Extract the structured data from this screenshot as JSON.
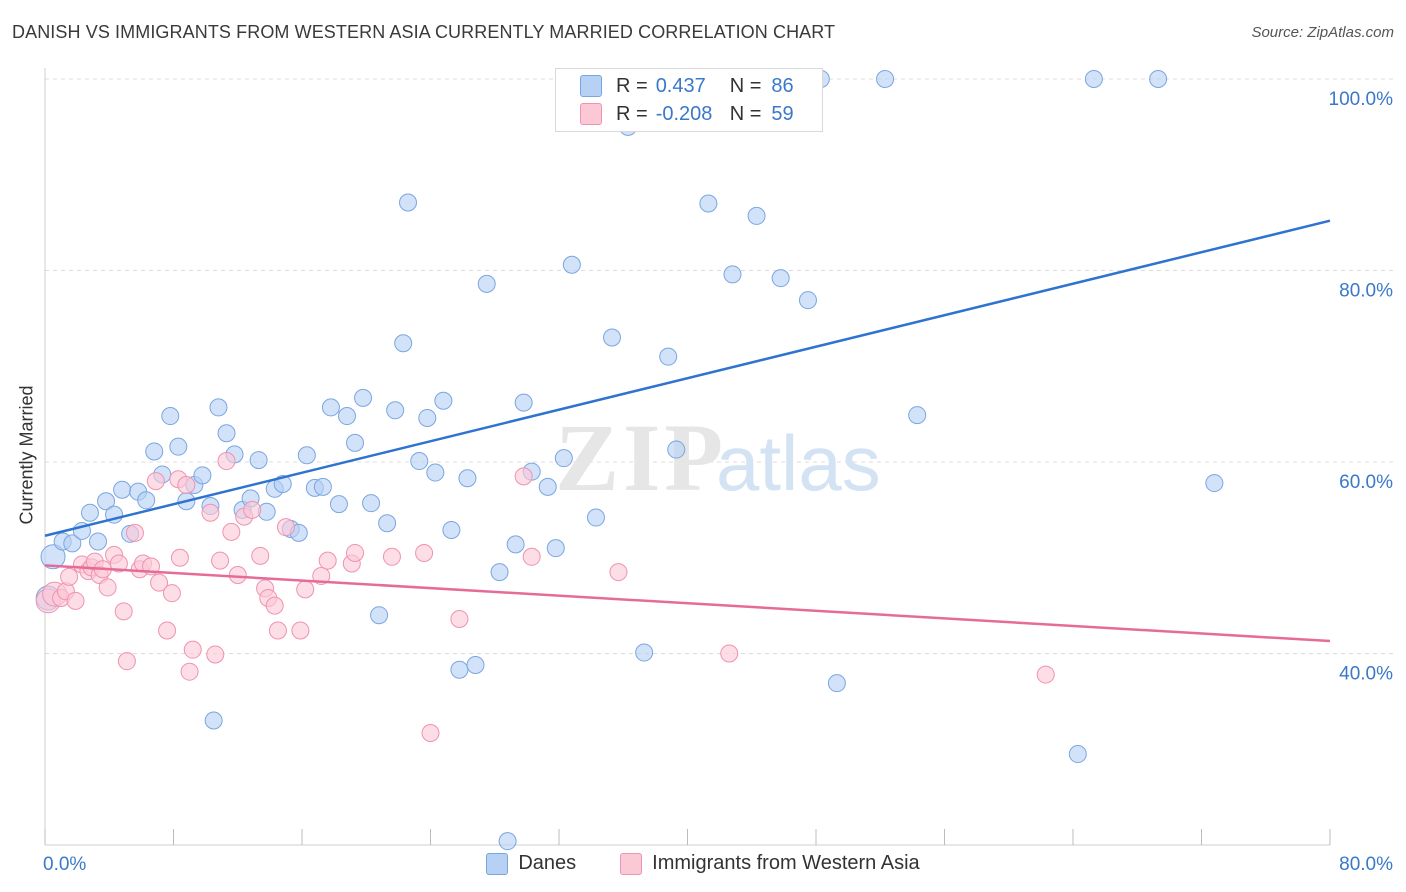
{
  "title": "DANISH VS IMMIGRANTS FROM WESTERN ASIA CURRENTLY MARRIED CORRELATION CHART",
  "source": "Source: ZipAtlas.com",
  "watermark": {
    "zip": "ZIP",
    "atlas": "atlas"
  },
  "legend": {
    "rows": [
      {
        "r_label": "R =",
        "r_value": "0.437",
        "n_label": "N =",
        "n_value": "86",
        "color": "#b7d1f5",
        "border": "#7aa6e0"
      },
      {
        "r_label": "R =",
        "r_value": "-0.208",
        "n_label": "N =",
        "n_value": "59",
        "color": "#fbc8d6",
        "border": "#ef93b0"
      }
    ]
  },
  "bottom_legend": [
    {
      "label": "Danes",
      "color": "#b7d1f5",
      "border": "#7aa6e0"
    },
    {
      "label": "Immigrants from Western Asia",
      "color": "#fbc8d6",
      "border": "#ef93b0"
    }
  ],
  "chart_data": {
    "type": "scatter",
    "title": "DANISH VS IMMIGRANTS FROM WESTERN ASIA CURRENTLY MARRIED CORRELATION CHART",
    "xlabel": "",
    "ylabel": "Currently Married",
    "xlim": [
      0,
      80
    ],
    "ylim": [
      20,
      100
    ],
    "x_ticks": [
      {
        "v": 0,
        "label": "0.0%"
      },
      {
        "v": 80,
        "label": "80.0%"
      }
    ],
    "y_ticks": [
      {
        "v": 40,
        "label": "40.0%"
      },
      {
        "v": 60,
        "label": "60.0%"
      },
      {
        "v": 80,
        "label": "80.0%"
      },
      {
        "v": 100,
        "label": "100.0%"
      }
    ],
    "grid": true,
    "series": [
      {
        "name": "Danes",
        "color": "#b7d1f5",
        "stroke": "#7aa6e0",
        "trend_color": "#2f73d0",
        "trend": [
          [
            0,
            52.3
          ],
          [
            80,
            85.2
          ]
        ],
        "points": [
          [
            0.2,
            45.8
          ],
          [
            0.5,
            50.1
          ],
          [
            1.1,
            51.7
          ],
          [
            1.7,
            51.5
          ],
          [
            2.3,
            52.8
          ],
          [
            2.8,
            54.7
          ],
          [
            3.3,
            51.7
          ],
          [
            3.8,
            55.9
          ],
          [
            4.3,
            54.5
          ],
          [
            4.8,
            57.1
          ],
          [
            5.3,
            52.5
          ],
          [
            5.8,
            56.9
          ],
          [
            6.3,
            56.0
          ],
          [
            6.8,
            61.1
          ],
          [
            7.3,
            58.7
          ],
          [
            7.8,
            64.8
          ],
          [
            8.3,
            61.6
          ],
          [
            8.8,
            55.9
          ],
          [
            9.3,
            57.6
          ],
          [
            9.8,
            58.6
          ],
          [
            10.3,
            55.4
          ],
          [
            10.8,
            65.7
          ],
          [
            11.3,
            63.0
          ],
          [
            11.8,
            60.8
          ],
          [
            12.3,
            55.0
          ],
          [
            12.8,
            56.2
          ],
          [
            13.3,
            60.2
          ],
          [
            13.8,
            54.8
          ],
          [
            14.3,
            57.2
          ],
          [
            14.8,
            57.7
          ],
          [
            15.3,
            53.0
          ],
          [
            15.8,
            52.6
          ],
          [
            16.3,
            60.7
          ],
          [
            16.8,
            57.3
          ],
          [
            17.3,
            57.4
          ],
          [
            17.8,
            65.7
          ],
          [
            18.3,
            55.6
          ],
          [
            18.8,
            64.8
          ],
          [
            19.3,
            62.0
          ],
          [
            19.8,
            66.7
          ],
          [
            20.3,
            55.7
          ],
          [
            20.8,
            44.0
          ],
          [
            21.3,
            53.6
          ],
          [
            21.8,
            65.4
          ],
          [
            22.3,
            72.4
          ],
          [
            22.6,
            87.1
          ],
          [
            23.3,
            60.1
          ],
          [
            23.8,
            64.6
          ],
          [
            24.3,
            58.9
          ],
          [
            24.8,
            66.4
          ],
          [
            25.3,
            52.9
          ],
          [
            25.8,
            38.3
          ],
          [
            26.3,
            58.3
          ],
          [
            26.8,
            38.8
          ],
          [
            27.5,
            78.6
          ],
          [
            28.3,
            48.5
          ],
          [
            28.8,
            20.4
          ],
          [
            29.3,
            51.4
          ],
          [
            29.8,
            66.2
          ],
          [
            30.3,
            59.0
          ],
          [
            31.3,
            57.4
          ],
          [
            31.8,
            51.0
          ],
          [
            32.3,
            60.4
          ],
          [
            32.8,
            80.6
          ],
          [
            34.3,
            54.2
          ],
          [
            35.3,
            73.0
          ],
          [
            36.3,
            95.0
          ],
          [
            37.3,
            40.1
          ],
          [
            38.2,
            100.0
          ],
          [
            38.8,
            71.0
          ],
          [
            39.3,
            61.3
          ],
          [
            41.3,
            87.0
          ],
          [
            42.8,
            79.6
          ],
          [
            44.3,
            85.7
          ],
          [
            44.8,
            100.0
          ],
          [
            45.8,
            79.2
          ],
          [
            47.5,
            76.9
          ],
          [
            48.3,
            100.0
          ],
          [
            49.3,
            36.9
          ],
          [
            52.3,
            100.0
          ],
          [
            54.3,
            64.9
          ],
          [
            64.3,
            29.5
          ],
          [
            65.3,
            100.0
          ],
          [
            69.3,
            100.0
          ],
          [
            72.8,
            57.8
          ],
          [
            10.5,
            33.0
          ]
        ]
      },
      {
        "name": "Immigrants from Western Asia",
        "color": "#fbc8d6",
        "stroke": "#ef93b0",
        "trend_color": "#e66b98",
        "trend": [
          [
            0,
            49.2
          ],
          [
            80,
            41.3
          ]
        ],
        "points": [
          [
            0.2,
            45.5
          ],
          [
            0.6,
            46.2
          ],
          [
            1.0,
            45.8
          ],
          [
            1.3,
            46.5
          ],
          [
            1.5,
            48.0
          ],
          [
            1.9,
            45.5
          ],
          [
            2.3,
            49.3
          ],
          [
            2.7,
            48.6
          ],
          [
            2.9,
            49.0
          ],
          [
            3.1,
            49.6
          ],
          [
            3.4,
            48.2
          ],
          [
            3.6,
            48.8
          ],
          [
            3.9,
            46.9
          ],
          [
            4.3,
            50.3
          ],
          [
            4.6,
            49.4
          ],
          [
            4.9,
            44.4
          ],
          [
            5.1,
            39.2
          ],
          [
            5.6,
            52.6
          ],
          [
            5.9,
            48.8
          ],
          [
            6.1,
            49.4
          ],
          [
            6.6,
            49.1
          ],
          [
            6.9,
            58.0
          ],
          [
            7.1,
            47.4
          ],
          [
            7.6,
            42.4
          ],
          [
            7.9,
            46.3
          ],
          [
            8.3,
            58.2
          ],
          [
            8.4,
            50.0
          ],
          [
            8.8,
            57.6
          ],
          [
            9.0,
            38.1
          ],
          [
            9.2,
            40.4
          ],
          [
            10.3,
            54.7
          ],
          [
            10.6,
            39.9
          ],
          [
            10.9,
            49.7
          ],
          [
            11.3,
            60.1
          ],
          [
            11.6,
            52.7
          ],
          [
            12.0,
            48.2
          ],
          [
            12.4,
            54.3
          ],
          [
            12.9,
            55.0
          ],
          [
            13.4,
            50.2
          ],
          [
            13.7,
            46.8
          ],
          [
            13.9,
            45.8
          ],
          [
            14.3,
            45.0
          ],
          [
            14.5,
            42.4
          ],
          [
            15.0,
            53.2
          ],
          [
            15.9,
            42.4
          ],
          [
            16.2,
            46.7
          ],
          [
            17.2,
            48.1
          ],
          [
            17.6,
            49.7
          ],
          [
            19.1,
            49.4
          ],
          [
            19.3,
            50.5
          ],
          [
            21.6,
            50.1
          ],
          [
            23.6,
            50.5
          ],
          [
            24.0,
            31.7
          ],
          [
            25.8,
            43.6
          ],
          [
            29.8,
            58.5
          ],
          [
            30.3,
            50.1
          ],
          [
            35.7,
            48.5
          ],
          [
            42.6,
            40.0
          ],
          [
            62.3,
            37.8
          ]
        ]
      }
    ]
  }
}
